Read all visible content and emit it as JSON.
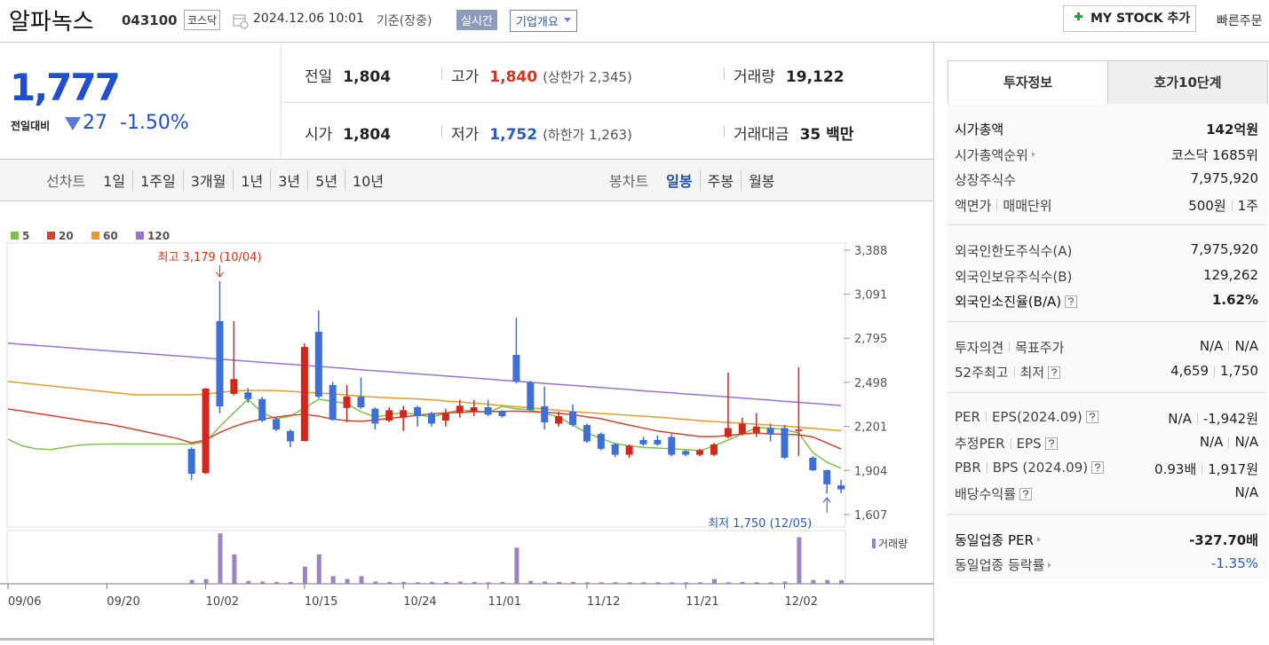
{
  "header": {
    "name": "알파녹스",
    "code": "043100",
    "market": "코스닥",
    "datetime": "2024.12.06 10:01",
    "basis": "기준(장중)",
    "realtime": "실시간",
    "company_info": "기업개요",
    "my_stock": "MY STOCK 추가",
    "quick_order": "빠른주문"
  },
  "quote": {
    "price": "1,777",
    "change_label": "전일대비",
    "change": "27",
    "change_rate": "-1.50%",
    "change_color": "#1f4fd0",
    "items": [
      {
        "label": "전일",
        "value": "1,804"
      },
      {
        "label": "고가",
        "value": "1,840",
        "sub": "(상한가 2,345)",
        "color": "#e0301e"
      },
      {
        "label": "거래량",
        "value": "19,122"
      },
      {
        "label": "시가",
        "value": "1,804"
      },
      {
        "label": "저가",
        "value": "1,752",
        "sub": "(하한가 1,263)",
        "color": "#2a5ac8"
      },
      {
        "label": "거래대금",
        "value": "35 백만"
      }
    ]
  },
  "period_tabs": {
    "line_chart": "선차트",
    "line_periods": [
      "1일",
      "1주일",
      "3개월",
      "1년",
      "3년",
      "5년",
      "10년"
    ],
    "candle_chart": "봉차트",
    "candle_periods": [
      "일봉",
      "주봉",
      "월봉"
    ],
    "active_candle": 0
  },
  "info": {
    "tabs": [
      "투자정보",
      "호가10단계"
    ],
    "active_tab": 0,
    "sections": [
      {
        "rows": [
          {
            "label": "시가총액",
            "value": "142억원",
            "bold": true
          },
          {
            "label": "시가총액순위",
            "value": "코스닥 1685위",
            "link": true
          },
          {
            "label": "상장주식수",
            "value": "7,975,920"
          },
          {
            "label": [
              "액면가",
              "매매단위"
            ],
            "value": [
              "500원",
              "1주"
            ]
          }
        ]
      },
      {
        "rows": [
          {
            "label": "외국인한도주식수(A)",
            "value": "7,975,920"
          },
          {
            "label": "외국인보유주식수(B)",
            "value": "129,262"
          },
          {
            "label": "외국인소진율(B/A)",
            "value": "1.62%",
            "bold": true,
            "help": true
          }
        ]
      },
      {
        "rows": [
          {
            "label": [
              "투자의견",
              "목표주가"
            ],
            "value": [
              "N/A",
              "N/A"
            ]
          },
          {
            "label": [
              "52주최고",
              "최저"
            ],
            "value": [
              "4,659",
              "1,750"
            ],
            "help": true
          }
        ]
      },
      {
        "rows": [
          {
            "label": [
              "PER",
              "EPS(2024.09)"
            ],
            "value": [
              "N/A",
              "-1,942원"
            ],
            "help": true
          },
          {
            "label": [
              "추정PER",
              "EPS"
            ],
            "value": [
              "N/A",
              "N/A"
            ],
            "help": true
          },
          {
            "label": [
              "PBR",
              "BPS (2024.09)"
            ],
            "value": [
              "0.93배",
              "1,917원"
            ],
            "help": true
          },
          {
            "label": "배당수익률",
            "value": "N/A",
            "help": true
          }
        ]
      },
      {
        "rows": [
          {
            "label": "동일업종 PER",
            "value": "-327.70배",
            "link": true,
            "bold": true
          },
          {
            "label": "동일업종 등락률",
            "value": "-1.35%",
            "link": true,
            "color": "#2a5ac8"
          }
        ]
      }
    ]
  },
  "chart_data": {
    "type": "candlestick",
    "categories": [
      "09/06",
      null,
      null,
      null,
      null,
      null,
      null,
      "09/20",
      null,
      null,
      null,
      null,
      null,
      null,
      "10/02",
      null,
      null,
      null,
      null,
      null,
      null,
      "10/15",
      null,
      null,
      null,
      null,
      null,
      null,
      "10/24",
      null,
      null,
      null,
      null,
      null,
      "11/01",
      null,
      null,
      null,
      null,
      null,
      null,
      "11/12",
      null,
      null,
      null,
      null,
      null,
      null,
      "11/21",
      null,
      null,
      null,
      null,
      null,
      null,
      "12/02",
      null,
      null,
      null,
      null
    ],
    "open": [
      null,
      null,
      null,
      null,
      null,
      null,
      null,
      null,
      null,
      null,
      null,
      null,
      null,
      2049,
      1888,
      2910,
      2420,
      2430,
      2385,
      2250,
      2170,
      2103,
      2838,
      2480,
      2325,
      2400,
      2320,
      2240,
      2260,
      2330,
      2290,
      2240,
      2290,
      2300,
      2330,
      2300,
      2683,
      2498,
      2336,
      2220,
      2300,
      2210,
      2150,
      2080,
      2010,
      2110,
      2110,
      2130,
      2035,
      2010,
      2010,
      2130,
      2150,
      2160,
      2190,
      2190,
      2170,
      1990,
      1906,
      1804
    ],
    "high": [
      null,
      null,
      null,
      null,
      null,
      null,
      null,
      null,
      null,
      null,
      null,
      null,
      null,
      2060,
      2460,
      3179,
      2910,
      2460,
      2400,
      2260,
      2180,
      2760,
      2982,
      2500,
      2480,
      2530,
      2330,
      2330,
      2340,
      2340,
      2300,
      2320,
      2380,
      2380,
      2380,
      2310,
      2934,
      2510,
      2470,
      2300,
      2350,
      2220,
      2160,
      2090,
      2080,
      2130,
      2140,
      2150,
      2040,
      2050,
      2090,
      2563,
      2260,
      2290,
      2220,
      2210,
      2600,
      2000,
      1910,
      1840
    ],
    "low": [
      null,
      null,
      null,
      null,
      null,
      null,
      null,
      null,
      null,
      null,
      null,
      null,
      null,
      1840,
      1880,
      2290,
      2410,
      2360,
      2230,
      2170,
      2060,
      2100,
      2390,
      2240,
      2230,
      2320,
      2180,
      2230,
      2170,
      2200,
      2200,
      2200,
      2260,
      2270,
      2270,
      2260,
      2490,
      2300,
      2180,
      2200,
      2200,
      2090,
      2040,
      1995,
      1990,
      2070,
      2070,
      2000,
      2000,
      2000,
      2000,
      2120,
      2140,
      2130,
      2100,
      1980,
      2000,
      1900,
      1750,
      1752
    ],
    "close": [
      null,
      null,
      null,
      null,
      null,
      null,
      null,
      null,
      null,
      null,
      null,
      null,
      null,
      1882,
      2456,
      2336,
      2520,
      2385,
      2240,
      2180,
      2100,
      2736,
      2402,
      2245,
      2402,
      2330,
      2220,
      2310,
      2310,
      2270,
      2220,
      2290,
      2340,
      2330,
      2280,
      2270,
      2503,
      2312,
      2228,
      2270,
      2210,
      2100,
      2050,
      2010,
      2070,
      2080,
      2080,
      2010,
      2010,
      2040,
      2080,
      2190,
      2220,
      2200,
      2150,
      1990,
      2180,
      1906,
      1811,
      1777
    ],
    "up_color": "#d6261b",
    "down_color": "#3d6fd6",
    "ylim": [
      1607,
      3388
    ],
    "yticks": [
      {
        "value": 3388,
        "label": "3,388"
      },
      {
        "value": 3091,
        "label": "3,091"
      },
      {
        "value": 2795,
        "label": "2,795"
      },
      {
        "value": 2498,
        "label": "2,498"
      },
      {
        "value": 2201,
        "label": "2,201"
      },
      {
        "value": 1904,
        "label": "1,904"
      },
      {
        "value": 1607,
        "label": "1,607"
      }
    ],
    "grid": false,
    "moving_averages": [
      {
        "name": "5",
        "color": "#7dc24b",
        "values": [
          2115,
          2070,
          2050,
          2045,
          2060,
          2075,
          2080,
          2082,
          2082,
          2082,
          2082,
          2082,
          2082,
          2082,
          2097,
          2200,
          2294,
          2384,
          2294,
          2253,
          2270,
          2324,
          2384,
          2370,
          2354,
          2300,
          2264,
          2280,
          2294,
          2280,
          2264,
          2290,
          2312,
          2305,
          2294,
          2336,
          2320,
          2312,
          2290,
          2264,
          2210,
          2157,
          2120,
          2085,
          2070,
          2060,
          2055,
          2050,
          2045,
          2037,
          2070,
          2109,
          2150,
          2193,
          2190,
          2180,
          2157,
          2025,
          1960,
          1918
        ]
      },
      {
        "name": "20",
        "color": "#d9412f",
        "values": [
          2318,
          2305,
          2290,
          2275,
          2260,
          2245,
          2230,
          2218,
          2200,
          2180,
          2160,
          2140,
          2120,
          2090,
          2110,
          2160,
          2200,
          2230,
          2250,
          2264,
          2276,
          2282,
          2270,
          2250,
          2240,
          2235,
          2245,
          2255,
          2265,
          2276,
          2285,
          2292,
          2296,
          2300,
          2300,
          2302,
          2304,
          2300,
          2296,
          2290,
          2280,
          2265,
          2253,
          2230,
          2210,
          2190,
          2170,
          2157,
          2145,
          2133,
          2133,
          2140,
          2150,
          2157,
          2150,
          2148,
          2145,
          2130,
          2090,
          2049
        ]
      },
      {
        "name": "60",
        "color": "#e89a2c",
        "values": [
          2504,
          2494,
          2484,
          2474,
          2464,
          2454,
          2444,
          2434,
          2424,
          2414,
          2414,
          2414,
          2414,
          2414,
          2418,
          2430,
          2440,
          2444,
          2444,
          2442,
          2438,
          2432,
          2426,
          2420,
          2412,
          2404,
          2398,
          2394,
          2390,
          2386,
          2380,
          2372,
          2366,
          2358,
          2350,
          2342,
          2334,
          2326,
          2318,
          2310,
          2300,
          2294,
          2288,
          2282,
          2276,
          2270,
          2264,
          2256,
          2248,
          2240,
          2234,
          2228,
          2222,
          2216,
          2210,
          2204,
          2196,
          2188,
          2180,
          2172
        ]
      },
      {
        "name": "120",
        "color": "#9d6fd9",
        "values": [
          2761,
          2754,
          2747,
          2740,
          2733,
          2725,
          2718,
          2711,
          2704,
          2697,
          2690,
          2683,
          2676,
          2669,
          2662,
          2654,
          2647,
          2640,
          2633,
          2626,
          2619,
          2612,
          2605,
          2598,
          2591,
          2583,
          2576,
          2569,
          2562,
          2555,
          2548,
          2541,
          2534,
          2527,
          2520,
          2512,
          2505,
          2498,
          2491,
          2484,
          2477,
          2470,
          2463,
          2456,
          2449,
          2441,
          2434,
          2427,
          2420,
          2413,
          2406,
          2399,
          2392,
          2385,
          2378,
          2370,
          2363,
          2356,
          2349,
          2342
        ]
      }
    ],
    "volume": {
      "name": "거래량",
      "color": "#9b83c9",
      "ylim": [
        0,
        280000
      ],
      "values": [
        null,
        null,
        null,
        null,
        null,
        null,
        null,
        null,
        null,
        null,
        null,
        null,
        null,
        20000,
        25000,
        265000,
        155000,
        15000,
        12000,
        10000,
        10000,
        90000,
        155000,
        40000,
        25000,
        40000,
        12000,
        10000,
        10000,
        8000,
        10000,
        10000,
        12000,
        10000,
        8000,
        10000,
        190000,
        15000,
        12000,
        10000,
        10000,
        8000,
        8000,
        8000,
        8000,
        8000,
        8000,
        8000,
        8000,
        8000,
        25000,
        8000,
        10000,
        8000,
        8000,
        12000,
        245000,
        20000,
        20000,
        19122
      ]
    },
    "high_label": "최고 3,179 (10/04)",
    "high_color": "#e0301e",
    "low_label": "최저 1,750 (12/05)",
    "low_color": "#2a5ac8"
  }
}
